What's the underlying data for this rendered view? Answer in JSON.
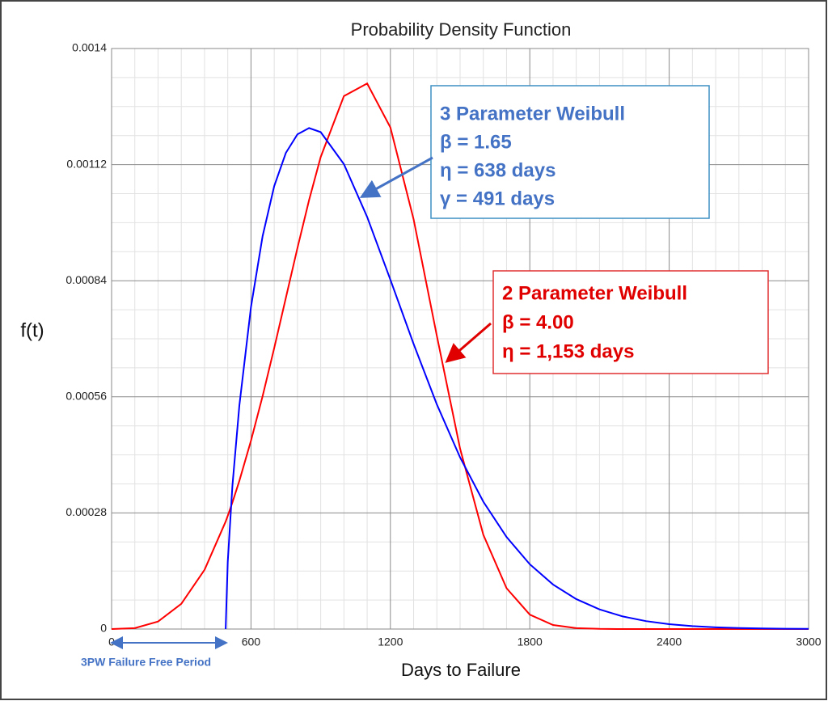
{
  "chart_data": {
    "type": "line",
    "title": "Probability Density Function",
    "x_label": "Days to Failure",
    "y_label": "f(t)",
    "x": [
      0,
      100,
      200,
      300,
      400,
      491,
      500,
      520,
      550,
      600,
      650,
      700,
      750,
      800,
      850,
      900,
      1000,
      1100,
      1200,
      1300,
      1400,
      1500,
      1600,
      1700,
      1800,
      1900,
      2000,
      2100,
      2200,
      2300,
      2400,
      2500,
      2600,
      2700,
      2800,
      2900,
      3000
    ],
    "series": [
      {
        "name": "2 Parameter Weibull",
        "color": "#ff0000",
        "values": [
          0,
          2.3e-06,
          1.81e-05,
          6.08e-05,
          0.0001427,
          0.0002592,
          0.0002731,
          0.0003052,
          0.0003574,
          0.0004543,
          0.0005616,
          0.0006777,
          0.0007984,
          0.000919,
          0.0010343,
          0.0011383,
          0.0012853,
          0.0013157,
          0.0012097,
          0.000988,
          0.000707,
          0.000435,
          0.0002273,
          9.85e-05,
          3.47e-05,
          9.7e-06,
          2.1e-06,
          4e-07,
          0,
          0,
          0,
          0,
          0,
          0,
          0,
          0,
          0
        ]
      },
      {
        "name": "3 Parameter Weibull",
        "color": "#0000ff",
        "values": [
          null,
          null,
          null,
          null,
          null,
          0,
          0.0001621,
          0.0003447,
          0.0005393,
          0.0007767,
          0.0009474,
          0.0010683,
          0.0011482,
          0.0011931,
          0.0012082,
          0.0011984,
          0.0011212,
          0.0009938,
          0.0008425,
          0.0006874,
          0.0005417,
          0.0004139,
          0.0003071,
          0.0002219,
          0.0001563,
          0.0001074,
          7.22e-05,
          4.74e-05,
          3.04e-05,
          1.91e-05,
          1.18e-05,
          7.1e-06,
          4.2e-06,
          2.5e-06,
          1.4e-06,
          8e-07,
          4e-07
        ]
      }
    ],
    "xlim": [
      0,
      3000
    ],
    "xticks": [
      0,
      600,
      1200,
      1800,
      2400,
      3000
    ],
    "ylim": [
      0,
      0.0014
    ],
    "yticks": [
      0,
      0.00028,
      0.00056,
      0.00084,
      0.00112,
      0.0014
    ],
    "grid": true,
    "minor_grid": true,
    "annotations": [
      {
        "lines": [
          "3 Parameter Weibull",
          "β = 1.65",
          "η = 638 days",
          "γ = 491 days"
        ],
        "color": "#4472c4"
      },
      {
        "lines": [
          "2 Parameter Weibull",
          "β = 4.00",
          "η = 1,153 days"
        ],
        "color": "#e00000"
      }
    ],
    "failure_free_label": "3PW Failure Free Period"
  }
}
